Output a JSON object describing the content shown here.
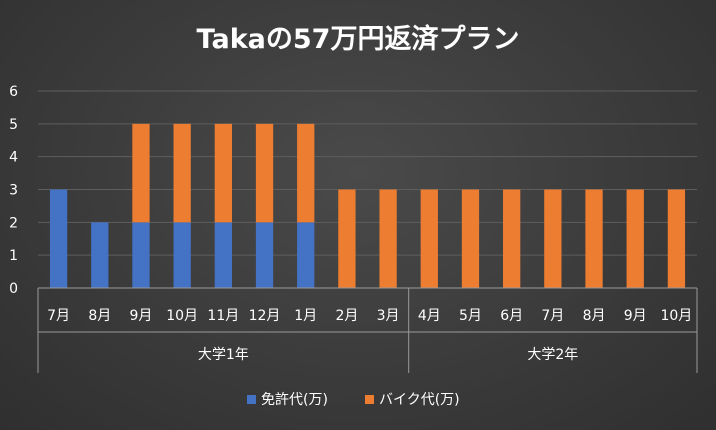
{
  "chart_data": {
    "type": "bar",
    "stacked": true,
    "title": "Takaの57万円返済プラン",
    "categories": [
      "7月",
      "8月",
      "9月",
      "10月",
      "11月",
      "12月",
      "1月",
      "2月",
      "3月",
      "4月",
      "5月",
      "6月",
      "7月",
      "8月",
      "9月",
      "10月"
    ],
    "groups": [
      {
        "label": "大学1年",
        "count": 9
      },
      {
        "label": "大学2年",
        "count": 7
      }
    ],
    "series": [
      {
        "name": "免許代(万)",
        "color": "#4472c4",
        "values": [
          3,
          2,
          2,
          2,
          2,
          2,
          2,
          0,
          0,
          0,
          0,
          0,
          0,
          0,
          0,
          0
        ]
      },
      {
        "name": "バイク代(万)",
        "color": "#ed7d31",
        "values": [
          0,
          0,
          3,
          3,
          3,
          3,
          3,
          3,
          3,
          3,
          3,
          3,
          3,
          3,
          3,
          3
        ]
      }
    ],
    "yticks": [
      "0",
      "1",
      "2",
      "3",
      "4",
      "5",
      "6"
    ],
    "ylim": [
      0,
      6
    ],
    "grid": true,
    "legend_position": "bottom"
  }
}
